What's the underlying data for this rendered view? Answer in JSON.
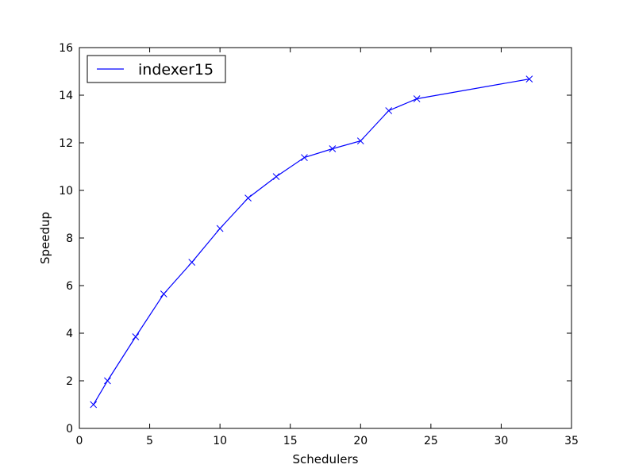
{
  "chart_data": {
    "type": "line",
    "title": "",
    "xlabel": "Schedulers",
    "ylabel": "Speedup",
    "xlim": [
      0,
      35
    ],
    "ylim": [
      0,
      16
    ],
    "xticks": [
      0,
      5,
      10,
      15,
      20,
      25,
      30,
      35
    ],
    "yticks": [
      0,
      2,
      4,
      6,
      8,
      10,
      12,
      14,
      16
    ],
    "grid": false,
    "legend_position": "top-left",
    "series": [
      {
        "name": "indexer15",
        "color": "#0000ff",
        "marker": "x",
        "x": [
          1,
          2,
          4,
          6,
          8,
          10,
          12,
          14,
          16,
          18,
          20,
          22,
          24,
          32
        ],
        "y": [
          1.0,
          2.0,
          3.85,
          5.65,
          6.98,
          8.4,
          9.68,
          10.58,
          11.38,
          11.75,
          12.08,
          13.35,
          13.85,
          14.68
        ]
      }
    ]
  }
}
